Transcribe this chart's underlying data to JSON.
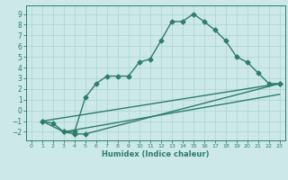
{
  "line1_x": [
    1,
    2,
    3,
    4,
    5,
    6,
    7,
    8,
    9,
    10,
    11,
    12,
    13,
    14,
    15,
    16,
    17,
    18,
    19,
    20,
    21,
    22,
    23
  ],
  "line1_y": [
    -1.0,
    -1.2,
    -2.0,
    -2.0,
    1.2,
    2.5,
    3.2,
    3.2,
    3.2,
    4.5,
    4.8,
    6.5,
    8.3,
    8.3,
    9.0,
    8.3,
    7.5,
    6.5,
    5.0,
    4.5,
    3.5,
    2.5,
    2.5
  ],
  "line2_x": [
    1,
    3,
    4,
    5,
    23
  ],
  "line2_y": [
    -1.0,
    -2.0,
    -2.2,
    -2.2,
    2.5
  ],
  "line3_x": [
    3,
    23
  ],
  "line3_y": [
    -2.0,
    1.5
  ],
  "line4_x": [
    1,
    23
  ],
  "line4_y": [
    -1.0,
    2.5
  ],
  "color": "#2d7d6b",
  "bg_color": "#cce8e8",
  "grid_color": "#aad4d4",
  "xlabel": "Humidex (Indice chaleur)",
  "xlim": [
    -0.5,
    23.5
  ],
  "ylim": [
    -2.8,
    9.8
  ],
  "xticks": [
    0,
    1,
    2,
    3,
    4,
    5,
    6,
    7,
    8,
    9,
    10,
    11,
    12,
    13,
    14,
    15,
    16,
    17,
    18,
    19,
    20,
    21,
    22,
    23
  ],
  "yticks": [
    -2,
    -1,
    0,
    1,
    2,
    3,
    4,
    5,
    6,
    7,
    8,
    9
  ],
  "marker": "D",
  "markersize": 2.5,
  "linewidth": 1.0
}
